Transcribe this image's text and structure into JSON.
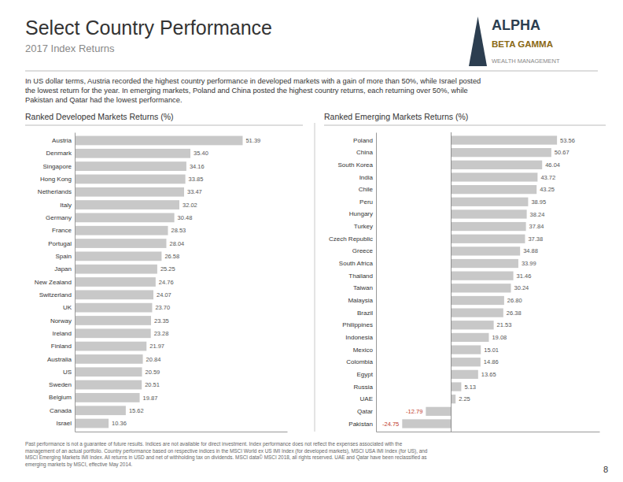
{
  "title": "Select Country Performance",
  "subtitle": "2017 Index Returns",
  "annotations": [
    "In US dollar terms, Austria recorded the highest country performance in developed markets with a gain of more than 50%, while Israel posted\nthe lowest return for the year. In emerging markets, Poland and China posted the highest country returns, each returning over 50%, while\nPakistan and Qatar had the lowest performance.",
    "ALPHA",
    "BETA GAMMA",
    "WEALTH MANAGEMENT",
    "Past performance is not a guarantee of future results. Indices are not available for direct investment. Index performance does not reflect the expenses associated with the\nmanagement of an actual portfolio. Country performance based on respective indices in the MSCI World ex US IMI Index (for developed markets), MSCI USA IMI Index (for US), and\nMSCI Emerging Markets IMI Index. All returns in USD and net of withholding tax on dividends. MSCI data© MSCI 2018, all rights reserved. UAE and Qatar have been reclassified as\nemerging markets by MSCI, effective May 2014.",
    "8"
  ],
  "chart_data": [
    {
      "type": "bar",
      "orientation": "horizontal",
      "title": "Ranked Developed Markets Returns (%)",
      "categories": [
        "Austria",
        "Denmark",
        "Singapore",
        "Hong Kong",
        "Netherlands",
        "Italy",
        "Germany",
        "France",
        "Portugal",
        "Spain",
        "Japan",
        "New Zealand",
        "Switzerland",
        "UK",
        "Norway",
        "Ireland",
        "Finland",
        "Australia",
        "US",
        "Sweden",
        "Belgium",
        "Canada",
        "Israel"
      ],
      "values": [
        51.39,
        35.4,
        34.16,
        33.85,
        33.47,
        32.02,
        30.48,
        28.53,
        28.04,
        26.58,
        25.25,
        24.76,
        24.07,
        23.7,
        23.35,
        23.28,
        21.97,
        20.84,
        20.59,
        20.51,
        19.87,
        15.62,
        10.36
      ],
      "value_labels": [
        "51.39",
        "35.40",
        "34.16",
        "33.85",
        "33.47",
        "32.02",
        "30.48",
        "28.53",
        "28.04",
        "26.58",
        "25.25",
        "24.76",
        "24.07",
        "23.70",
        "23.35",
        "23.28",
        "21.97",
        "20.84",
        "20.59",
        "20.51",
        "19.87",
        "15.62",
        "10.36"
      ],
      "color": "#c8c8c8",
      "xlim": [
        0,
        65
      ],
      "data_labels": true,
      "tick_labels": "y"
    },
    {
      "type": "bar",
      "orientation": "horizontal",
      "title": "Ranked Emerging Markets Returns (%)",
      "categories": [
        "Poland",
        "China",
        "South Korea",
        "India",
        "Chile",
        "Peru",
        "Hungary",
        "Turkey",
        "Czech Republic",
        "Greece",
        "South Africa",
        "Thailand",
        "Taiwan",
        "Malaysia",
        "Brazil",
        "Philippines",
        "Indonesia",
        "Mexico",
        "Colombia",
        "Egypt",
        "Russia",
        "UAE",
        "Qatar",
        "Pakistan"
      ],
      "values": [
        53.56,
        50.67,
        46.04,
        43.72,
        43.25,
        38.95,
        38.24,
        37.84,
        37.38,
        34.88,
        33.99,
        31.46,
        30.24,
        26.8,
        26.38,
        21.53,
        19.08,
        15.01,
        14.86,
        13.65,
        5.13,
        2.25,
        -12.79,
        -24.75
      ],
      "value_labels": [
        "53.56",
        "50.67",
        "46.04",
        "43.72",
        "43.25",
        "38.95",
        "38.24",
        "37.84",
        "37.38",
        "34.88",
        "33.99",
        "31.46",
        "30.24",
        "26.80",
        "26.38",
        "21.53",
        "19.08",
        "15.01",
        "14.86",
        "13.65",
        "5.13",
        "2.25",
        "-12.79",
        "-24.75"
      ],
      "color": "#c8c8c8",
      "xlim": [
        -38,
        75
      ],
      "data_labels": true,
      "tick_labels": "y"
    }
  ]
}
